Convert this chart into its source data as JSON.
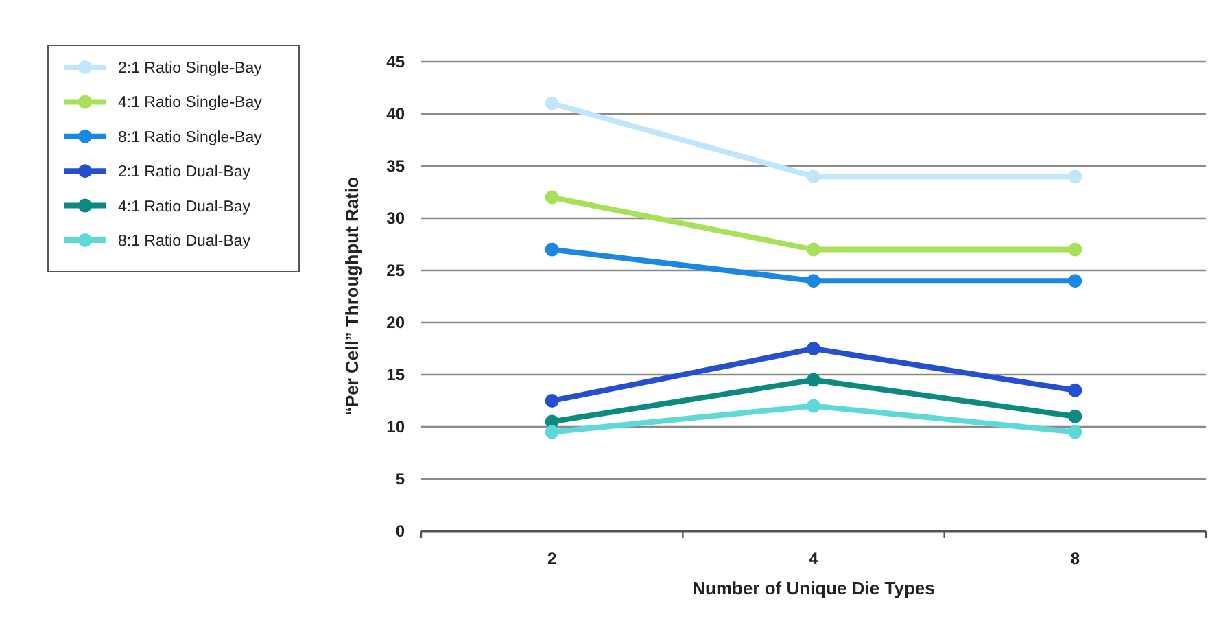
{
  "chart_data": {
    "type": "line",
    "xlabel": "Number of Unique Die Types",
    "ylabel": "“Per Cell” Throughput Ratio",
    "categories": [
      "2",
      "4",
      "8"
    ],
    "series": [
      {
        "name": "2:1 Ratio Single-Bay",
        "color": "#bfe6fa",
        "values": [
          41,
          34,
          34
        ]
      },
      {
        "name": "4:1 Ratio Single-Bay",
        "color": "#a8e05a",
        "values": [
          32,
          27,
          27
        ]
      },
      {
        "name": "8:1 Ratio Single-Bay",
        "color": "#1a88e0",
        "values": [
          27,
          24,
          24
        ]
      },
      {
        "name": "2:1 Ratio Dual-Bay",
        "color": "#2450d0",
        "values": [
          12.5,
          17.5,
          13.5
        ]
      },
      {
        "name": "4:1 Ratio Dual-Bay",
        "color": "#0c8a80",
        "values": [
          10.5,
          14.5,
          11
        ]
      },
      {
        "name": "8:1 Ratio Dual-Bay",
        "color": "#5ed8d8",
        "values": [
          9.5,
          12,
          9.5
        ]
      }
    ],
    "ylim": [
      0,
      45
    ],
    "yticks": [
      0,
      5,
      10,
      15,
      20,
      25,
      30,
      35,
      40,
      45
    ],
    "grid": "y",
    "legend": "left",
    "marker": "circle",
    "line_style": "solid"
  }
}
